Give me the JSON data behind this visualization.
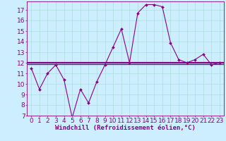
{
  "title": "",
  "xlabel": "Windchill (Refroidissement éolien,°C)",
  "ylabel": "",
  "x_values": [
    0,
    1,
    2,
    3,
    4,
    5,
    6,
    7,
    8,
    9,
    10,
    11,
    12,
    13,
    14,
    15,
    16,
    17,
    18,
    19,
    20,
    21,
    22,
    23
  ],
  "y_values": [
    11.5,
    9.5,
    11.0,
    11.8,
    10.4,
    6.8,
    9.5,
    8.2,
    10.2,
    11.8,
    13.5,
    15.2,
    12.0,
    16.7,
    17.5,
    17.5,
    17.3,
    13.9,
    12.3,
    12.0,
    12.3,
    12.8,
    11.8,
    12.0
  ],
  "hline_values": [
    11.9,
    12.0,
    12.1
  ],
  "xlim": [
    -0.5,
    23.5
  ],
  "ylim": [
    7,
    17.8
  ],
  "yticks": [
    7,
    8,
    9,
    10,
    11,
    12,
    13,
    14,
    15,
    16,
    17
  ],
  "xticks": [
    0,
    1,
    2,
    3,
    4,
    5,
    6,
    7,
    8,
    9,
    10,
    11,
    12,
    13,
    14,
    15,
    16,
    17,
    18,
    19,
    20,
    21,
    22,
    23
  ],
  "line_color": "#880088",
  "hline_color": "#880088",
  "marker_color": "#880088",
  "bg_color": "#cceeff",
  "grid_color": "#aadddd",
  "tick_color": "#880088",
  "label_color": "#880088",
  "font_size": 6.5,
  "xlabel_fontsize": 6.5,
  "line_width": 0.8,
  "marker_size": 2.0
}
